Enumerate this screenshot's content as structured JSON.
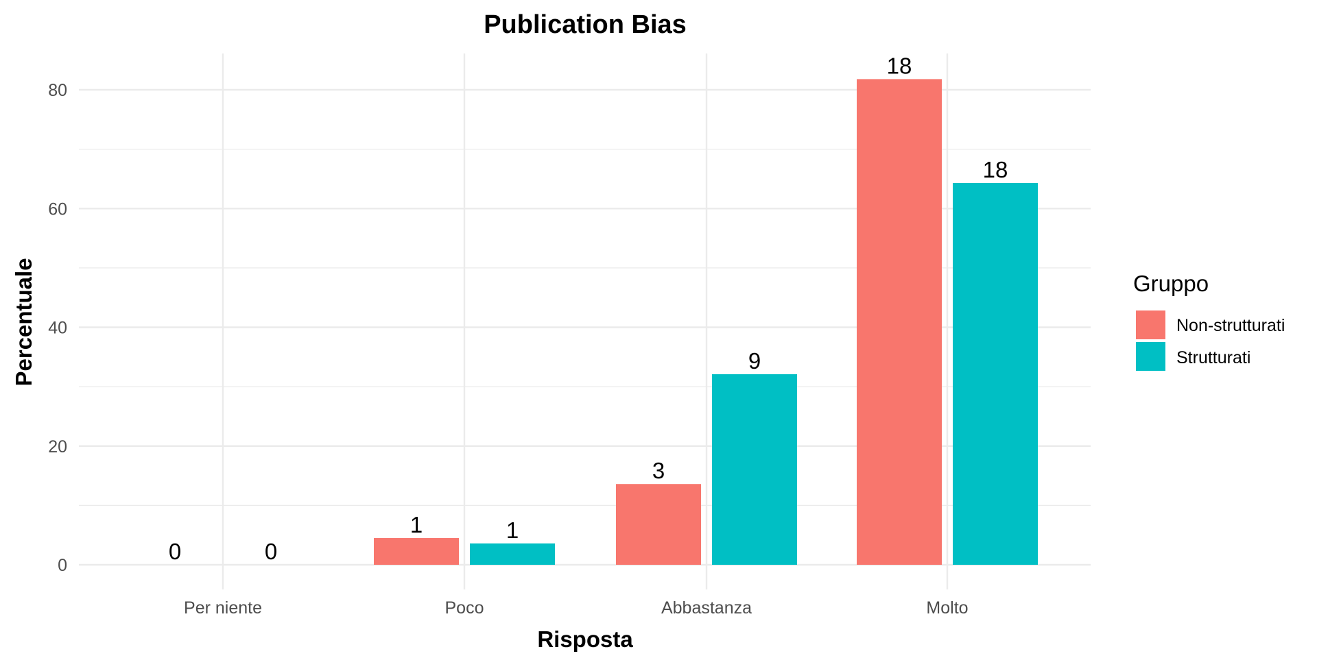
{
  "chart_data": {
    "type": "bar",
    "title": "Publication Bias",
    "xlabel": "Risposta",
    "ylabel": "Percentuale",
    "categories": [
      "Per niente",
      "Poco",
      "Abbastanza",
      "Molto"
    ],
    "series": [
      {
        "name": "Non-strutturati",
        "color": "#F8766D",
        "values": [
          0,
          4.5,
          13.6,
          81.8
        ],
        "labels": [
          "0",
          "1",
          "3",
          "18"
        ]
      },
      {
        "name": "Strutturati",
        "color": "#00BFC4",
        "values": [
          0,
          3.6,
          32.1,
          64.3
        ],
        "labels": [
          "0",
          "1",
          "9",
          "18"
        ]
      }
    ],
    "ylim": [
      0,
      85
    ],
    "yticks": [
      0,
      20,
      40,
      60,
      80
    ],
    "grid": true,
    "legend": {
      "title": "Gruppo",
      "placement": "right"
    }
  }
}
